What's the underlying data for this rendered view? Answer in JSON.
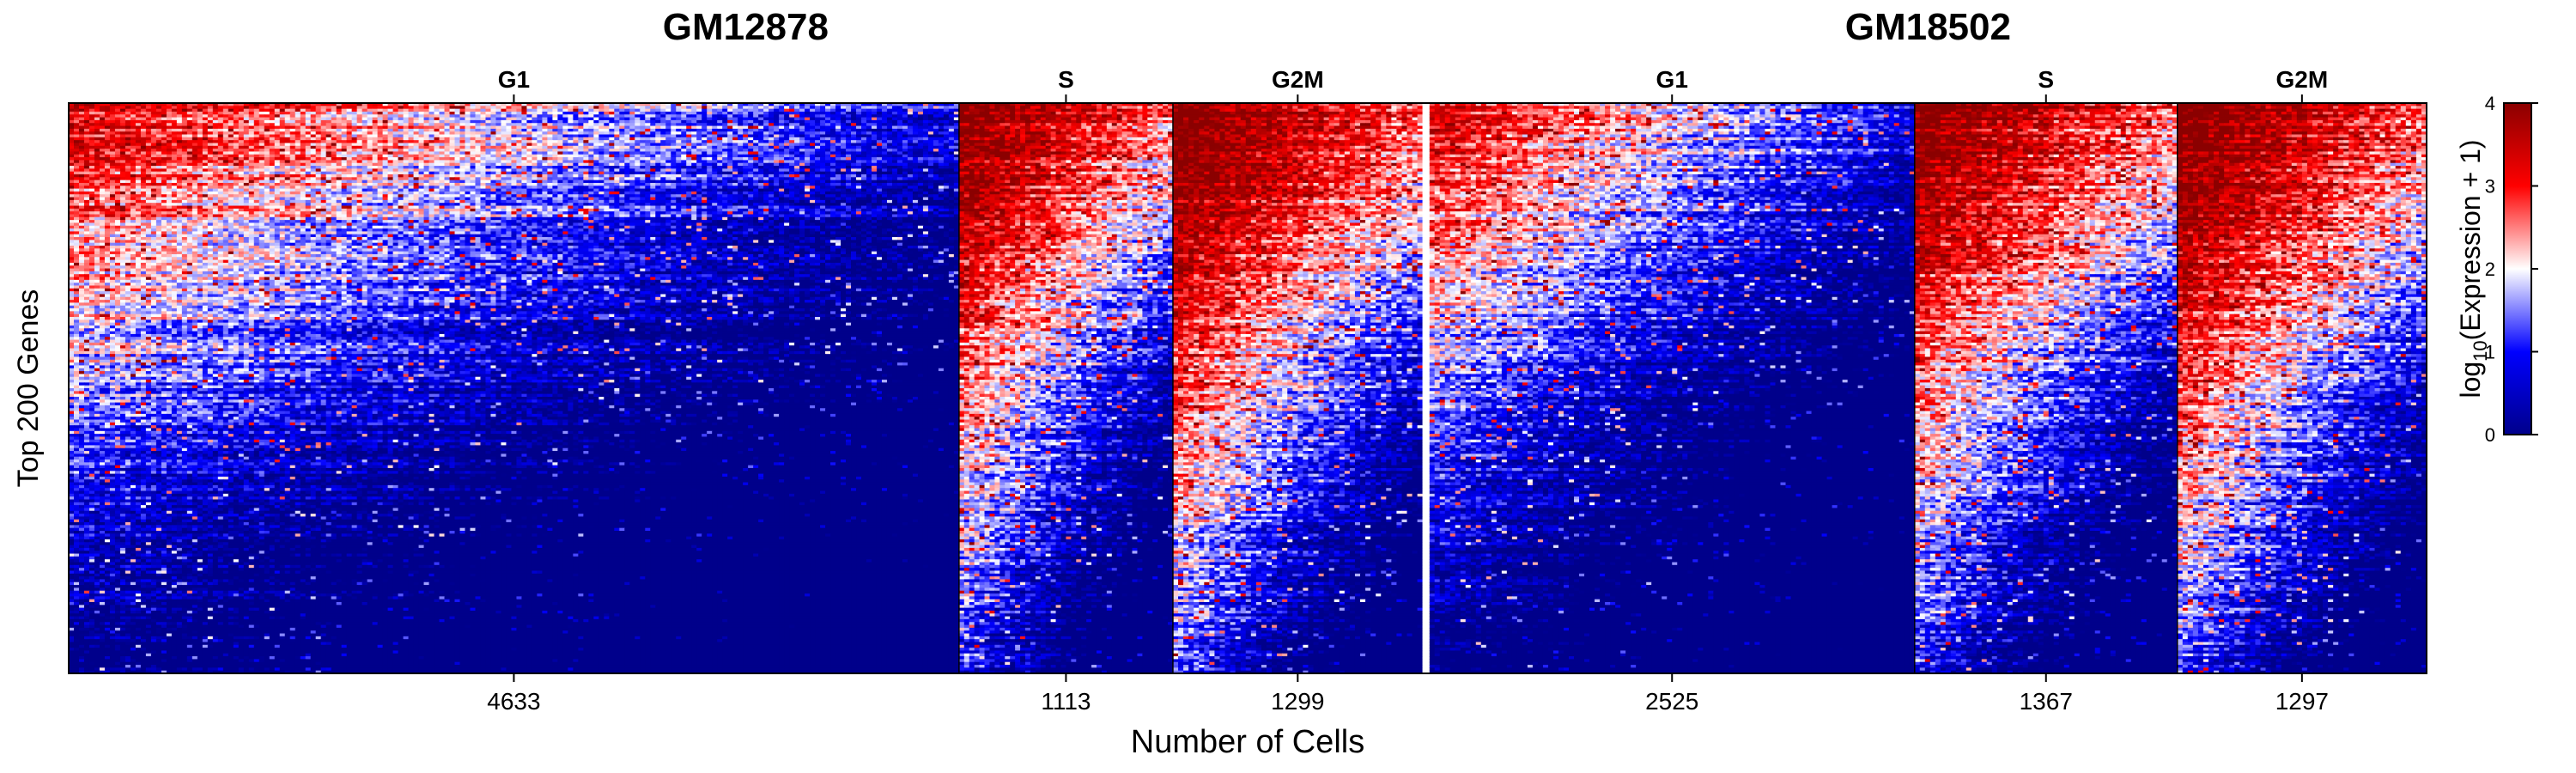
{
  "chart_data": {
    "type": "heatmap",
    "title": "",
    "groups": [
      {
        "name": "GM12878",
        "phases": [
          {
            "phase": "G1",
            "cells": 4633
          },
          {
            "phase": "S",
            "cells": 1113
          },
          {
            "phase": "G2M",
            "cells": 1299
          }
        ]
      },
      {
        "name": "GM18502",
        "phases": [
          {
            "phase": "G1",
            "cells": 2525
          },
          {
            "phase": "S",
            "cells": 1367
          },
          {
            "phase": "G2M",
            "cells": 1297
          }
        ]
      }
    ],
    "xlabel": "Number of Cells",
    "ylabel": "Top 200 Genes",
    "n_genes": 200,
    "colorbar": {
      "label_prefix": "log",
      "label_sub": "10",
      "label_suffix": "(Expression + 1)",
      "range": [
        0,
        4
      ],
      "ticks": [
        0,
        1,
        2,
        3,
        4
      ],
      "colors": [
        "#00008b",
        "#0000ff",
        "#ffffff",
        "#ff0000",
        "#8b0000"
      ]
    }
  }
}
